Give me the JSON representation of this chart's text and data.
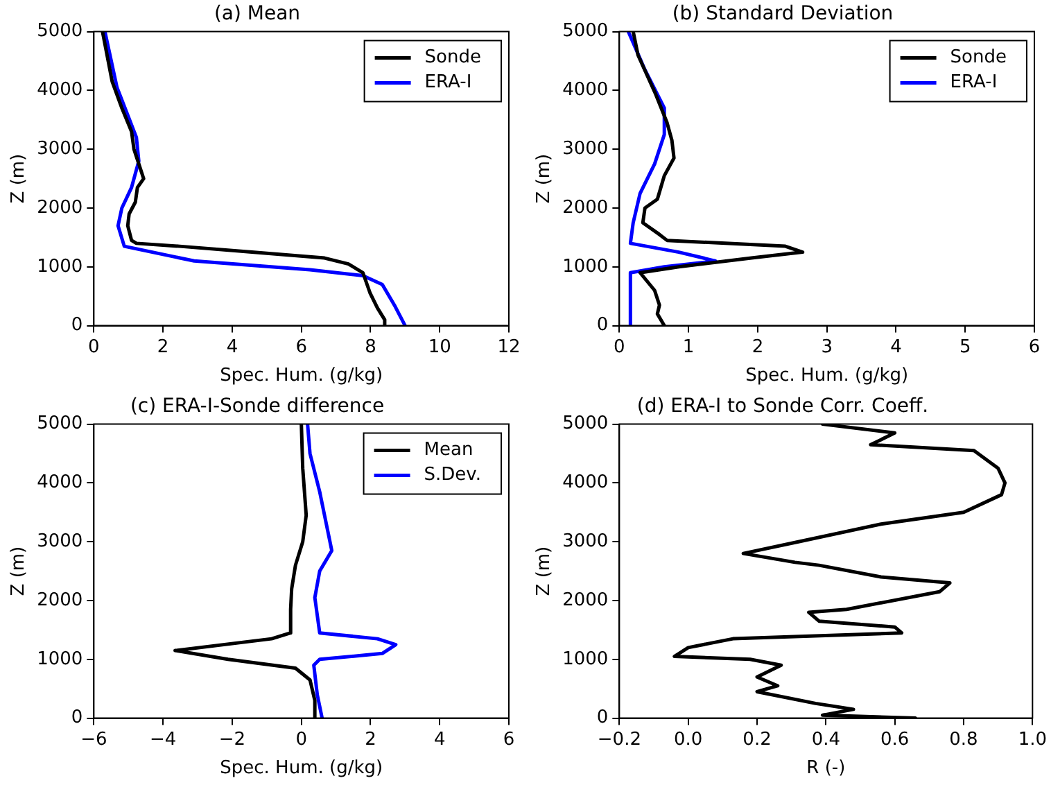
{
  "chart_data": [
    {
      "type": "line",
      "title": "(a) Mean",
      "xlabel": "Spec. Hum. (g/kg)",
      "ylabel": "Z (m)",
      "legend": "top right",
      "xlim": [
        0,
        12
      ],
      "xticks": [
        0,
        2,
        4,
        6,
        8,
        10,
        12
      ],
      "ylim": [
        0,
        5000
      ],
      "yticks": [
        0,
        1000,
        2000,
        3000,
        4000,
        5000
      ],
      "series": [
        {
          "name": "Sonde",
          "color": "#000000",
          "x": [
            0.25,
            0.53,
            0.81,
            1.09,
            1.16,
            1.3,
            1.44,
            1.26,
            1.2,
            1.02,
            0.98,
            1.09,
            1.23,
            2.48,
            4.57,
            6.67,
            7.36,
            7.78,
            7.99,
            8.2,
            8.41,
            8.41
          ],
          "values": [
            5000,
            4150,
            3700,
            3300,
            3000,
            2750,
            2500,
            2350,
            2100,
            1900,
            1700,
            1450,
            1400,
            1350,
            1250,
            1150,
            1050,
            900,
            550,
            300,
            100,
            0
          ]
        },
        {
          "name": "ERA-I",
          "color": "#0000ff",
          "x": [
            0.32,
            0.67,
            1.23,
            1.3,
            1.09,
            0.81,
            0.7,
            0.88,
            2.9,
            6.25,
            7.78,
            8.34,
            8.69,
            9.0
          ],
          "values": [
            5000,
            4050,
            3200,
            2800,
            2350,
            2000,
            1700,
            1350,
            1100,
            950,
            850,
            700,
            350,
            0
          ]
        }
      ]
    },
    {
      "type": "line",
      "title": "(b) Standard Deviation",
      "xlabel": "Spec. Hum. (g/kg)",
      "ylabel": "Z (m)",
      "legend": "top right",
      "xlim": [
        0,
        6
      ],
      "xticks": [
        0,
        1,
        2,
        3,
        4,
        5,
        6
      ],
      "ylim": [
        0,
        5000
      ],
      "yticks": [
        0,
        1000,
        2000,
        3000,
        4000,
        5000
      ],
      "series": [
        {
          "name": "Sonde",
          "color": "#000000",
          "x": [
            0.2,
            0.27,
            0.52,
            0.69,
            0.76,
            0.79,
            0.65,
            0.55,
            0.37,
            0.34,
            0.58,
            0.69,
            2.4,
            2.65,
            1.91,
            0.86,
            0.3,
            0.51,
            0.58,
            0.55,
            0.65
          ],
          "values": [
            5000,
            4600,
            3950,
            3450,
            3150,
            2850,
            2550,
            2150,
            2000,
            1750,
            1550,
            1450,
            1350,
            1250,
            1150,
            1000,
            900,
            600,
            350,
            200,
            0
          ]
        },
        {
          "name": "ERA-I",
          "color": "#0000ff",
          "x": [
            0.13,
            0.37,
            0.65,
            0.65,
            0.51,
            0.3,
            0.2,
            0.16,
            0.86,
            1.39,
            0.65,
            0.16,
            0.16
          ],
          "values": [
            5000,
            4350,
            3700,
            3250,
            2750,
            2250,
            1750,
            1400,
            1250,
            1100,
            1000,
            900,
            0
          ]
        }
      ]
    },
    {
      "type": "line",
      "title": "(c) ERA-I-Sonde difference",
      "xlabel": "Spec. Hum. (g/kg)",
      "ylabel": "Z (m)",
      "legend": "top right",
      "xlim": [
        -6,
        6
      ],
      "xticks": [
        {
          "value": -6,
          "label": "−6"
        },
        {
          "value": -4,
          "label": "−4"
        },
        {
          "value": -2,
          "label": "−2"
        },
        0,
        2,
        4,
        6
      ],
      "ylim": [
        0,
        5000
      ],
      "yticks": [
        0,
        1000,
        2000,
        3000,
        4000,
        5000
      ],
      "series": [
        {
          "name": "Mean",
          "color": "#000000",
          "x": [
            0,
            0.04,
            0.14,
            0.04,
            -0.17,
            -0.28,
            -0.31,
            -0.31,
            -0.86,
            -3.65,
            -2.12,
            -0.17,
            0.25,
            0.39,
            0.39
          ],
          "values": [
            5000,
            4250,
            3450,
            3000,
            2600,
            2200,
            1850,
            1450,
            1350,
            1150,
            1000,
            850,
            650,
            300,
            0
          ]
        },
        {
          "name": "S.Dev.",
          "color": "#0000ff",
          "x": [
            0.18,
            0.25,
            0.53,
            0.88,
            0.53,
            0.39,
            0.53,
            2.2,
            2.73,
            2.34,
            0.53,
            0.36,
            0.46,
            0.6
          ],
          "values": [
            5000,
            4500,
            3850,
            2850,
            2500,
            2050,
            1450,
            1350,
            1250,
            1100,
            1000,
            900,
            400,
            0
          ]
        }
      ]
    },
    {
      "type": "line",
      "title": "(d) ERA-I to Sonde Corr. Coeff.",
      "xlabel": "R (-)",
      "ylabel": "Z (m)",
      "xlim": [
        -0.2,
        1.0
      ],
      "xticks": [
        {
          "value": -0.2,
          "label": "−0.2"
        },
        {
          "value": 0,
          "label": "0.0"
        },
        {
          "value": 0.2,
          "label": "0.2"
        },
        {
          "value": 0.4,
          "label": "0.4"
        },
        {
          "value": 0.6,
          "label": "0.6"
        },
        {
          "value": 0.8,
          "label": "0.8"
        },
        {
          "value": 1.0,
          "label": "1.0"
        }
      ],
      "ylim": [
        0,
        5000
      ],
      "yticks": [
        0,
        1000,
        2000,
        3000,
        4000,
        5000
      ],
      "series": [
        {
          "color": "#000000",
          "x": [
            0.39,
            0.6,
            0.53,
            0.83,
            0.9,
            0.92,
            0.91,
            0.8,
            0.56,
            0.32,
            0.16,
            0.31,
            0.38,
            0.56,
            0.76,
            0.73,
            0.46,
            0.35,
            0.38,
            0.6,
            0.62,
            0.13,
            0.0,
            -0.04,
            0.18,
            0.27,
            0.2,
            0.26,
            0.2,
            0.37,
            0.48,
            0.39,
            0.66
          ],
          "values": [
            5000,
            4850,
            4650,
            4550,
            4250,
            4000,
            3800,
            3500,
            3300,
            3000,
            2800,
            2650,
            2600,
            2400,
            2300,
            2150,
            1850,
            1800,
            1650,
            1550,
            1450,
            1350,
            1200,
            1050,
            1000,
            900,
            700,
            550,
            450,
            250,
            150,
            50,
            0
          ]
        }
      ]
    }
  ]
}
